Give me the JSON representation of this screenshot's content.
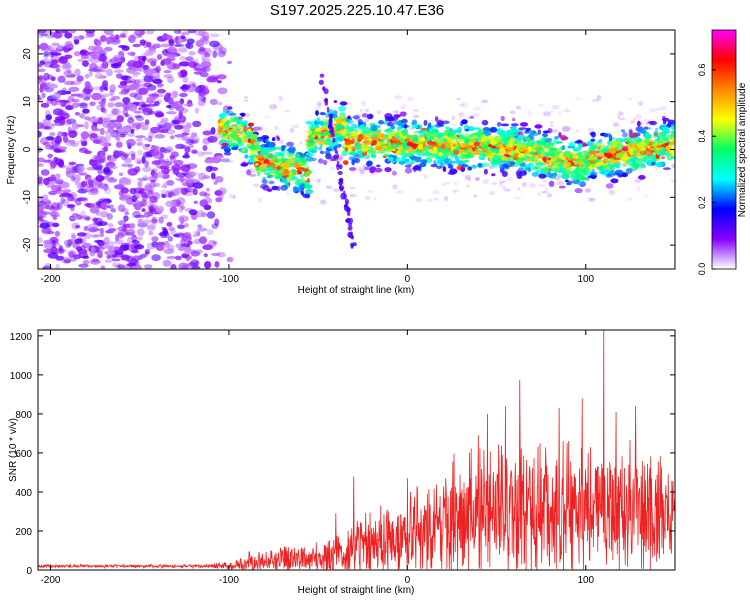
{
  "title": "S197.2025.225.10.47.E36",
  "chart_data": [
    {
      "type": "heatmap",
      "xlabel": "Height of straight line (km)",
      "ylabel": "Frequency (Hz)",
      "xlim": [
        -207,
        150
      ],
      "ylim": [
        -25,
        25
      ],
      "xticks": [
        -200,
        -100,
        0,
        100
      ],
      "xtick_labels": [
        "-200",
        "-100",
        "0",
        "100"
      ],
      "yticks": [
        -20,
        -10,
        0,
        10,
        20
      ],
      "ytick_labels": [
        "-20",
        "-10",
        "0",
        "10",
        "20"
      ],
      "colorbar": {
        "label": "Normalized spectral amplitude",
        "range": [
          0,
          0.72
        ],
        "ticks": [
          0,
          0.2,
          0.4,
          0.6
        ],
        "tick_labels": [
          "0.0",
          "0.2",
          "0.4",
          "0.6"
        ],
        "colormap": [
          "#ffffff",
          "#8800ff",
          "#0000ff",
          "#00ffff",
          "#00ff66",
          "#ffff00",
          "#ff8800",
          "#ff0000",
          "#ff00ff"
        ]
      },
      "description_regions": [
        {
          "x": [
            -207,
            -100
          ],
          "y": [
            -25,
            25
          ],
          "level": "low_noise"
        },
        {
          "x": [
            -100,
            150
          ],
          "y": [
            -6,
            6
          ],
          "level": "signal_band"
        }
      ],
      "streak": {
        "x": [
          -48,
          -30
        ],
        "y": [
          15,
          -20
        ]
      }
    },
    {
      "type": "line",
      "xlabel": "Height of straight line (km)",
      "ylabel": "SNR (10 * v/v)",
      "xlim": [
        -207,
        150
      ],
      "ylim": [
        0,
        1230
      ],
      "xticks": [
        -200,
        -100,
        0,
        100
      ],
      "xtick_labels": [
        "-200",
        "-100",
        "0",
        "100"
      ],
      "yticks": [
        0,
        200,
        400,
        600,
        800,
        1000,
        1200
      ],
      "ytick_labels": [
        "0",
        "200",
        "400",
        "600",
        "800",
        "1000",
        "1200"
      ],
      "series": [
        {
          "name": "SNR",
          "color": "#ee2222",
          "envelope_x": [
            -207,
            -150,
            -110,
            -100,
            -90,
            -70,
            -50,
            -40,
            -30,
            -20,
            -10,
            0,
            10,
            20,
            30,
            40,
            50,
            60,
            70,
            80,
            90,
            100,
            110,
            120,
            130,
            140,
            150
          ],
          "envelope_baseline": [
            20,
            20,
            20,
            25,
            35,
            50,
            60,
            80,
            100,
            120,
            150,
            180,
            220,
            260,
            290,
            310,
            320,
            330,
            330,
            320,
            320,
            310,
            320,
            310,
            300,
            290,
            290
          ],
          "envelope_amplitude": [
            10,
            10,
            12,
            30,
            60,
            80,
            100,
            150,
            200,
            200,
            220,
            250,
            300,
            350,
            380,
            400,
            420,
            450,
            450,
            420,
            420,
            400,
            420,
            400,
            380,
            380,
            380
          ],
          "peaks": [
            {
              "x": -40,
              "y": 290
            },
            {
              "x": -30,
              "y": 480
            },
            {
              "x": -15,
              "y": 330
            },
            {
              "x": 0,
              "y": 470
            },
            {
              "x": 45,
              "y": 800
            },
            {
              "x": 55,
              "y": 840
            },
            {
              "x": 63,
              "y": 975
            },
            {
              "x": 85,
              "y": 830
            },
            {
              "x": 98,
              "y": 880
            },
            {
              "x": 110,
              "y": 1230
            },
            {
              "x": 117,
              "y": 810
            },
            {
              "x": 128,
              "y": 840
            }
          ]
        }
      ]
    }
  ]
}
